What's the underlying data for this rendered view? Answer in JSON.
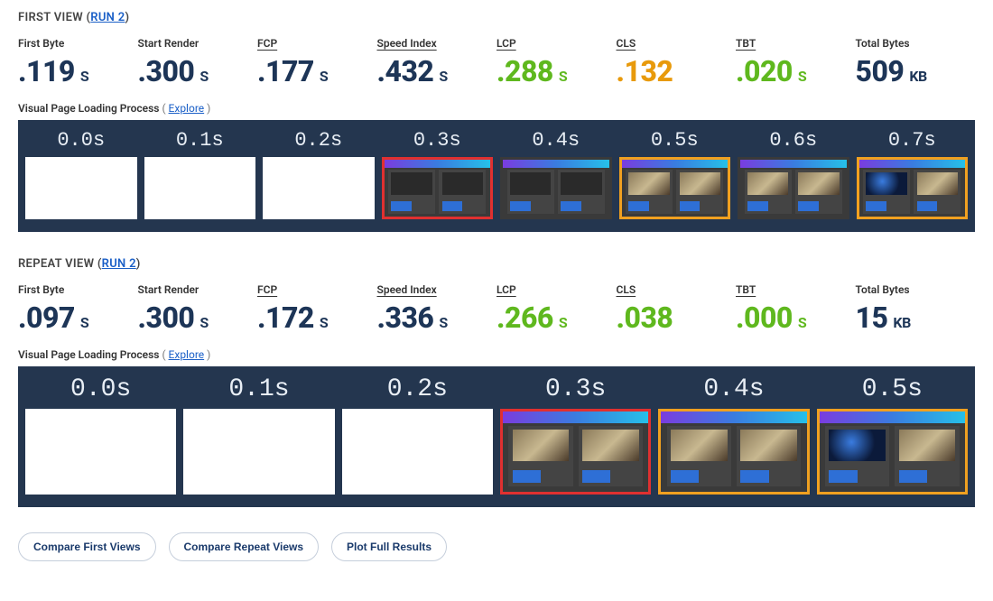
{
  "colors": {
    "navy": "#1d3557",
    "green": "#5fb81e",
    "orange": "#e89a0c",
    "link": "#1a5fc7",
    "filmstrip_bg": "#24364f",
    "hl_red": "#e03030",
    "hl_orange": "#f0a020"
  },
  "sections": [
    {
      "id": "first",
      "title_prefix": "FIRST VIEW ",
      "run_label": "RUN 2",
      "metrics": [
        {
          "label": "First Byte",
          "value": ".119",
          "unit": "S",
          "color": "navy",
          "underline": false
        },
        {
          "label": "Start Render",
          "value": ".300",
          "unit": "S",
          "color": "navy",
          "underline": false
        },
        {
          "label": "FCP",
          "value": ".177",
          "unit": "S",
          "color": "navy",
          "underline": true
        },
        {
          "label": "Speed Index",
          "value": ".432",
          "unit": "S",
          "color": "navy",
          "underline": true
        },
        {
          "label": "LCP",
          "value": ".288",
          "unit": "S",
          "color": "green",
          "underline": true
        },
        {
          "label": "CLS",
          "value": ".132",
          "unit": "",
          "color": "orange",
          "underline": true
        },
        {
          "label": "TBT",
          "value": ".020",
          "unit": "S",
          "color": "green",
          "underline": true
        },
        {
          "label": "Total Bytes",
          "value": "509",
          "unit": "KB",
          "color": "navy",
          "underline": false
        }
      ],
      "loading_label": "Visual Page Loading Process",
      "explore_label": "Explore",
      "filmstrip": {
        "frame_time_fontsize": 22,
        "frames": [
          {
            "t": "0.0s",
            "style": "blank",
            "highlight": null
          },
          {
            "t": "0.1s",
            "style": "blank",
            "highlight": null
          },
          {
            "t": "0.2s",
            "style": "blank",
            "highlight": null
          },
          {
            "t": "0.3s",
            "style": "dark",
            "highlight": "red"
          },
          {
            "t": "0.4s",
            "style": "dark",
            "highlight": null
          },
          {
            "t": "0.5s",
            "style": "photo1",
            "highlight": "orange"
          },
          {
            "t": "0.6s",
            "style": "photo1",
            "highlight": null
          },
          {
            "t": "0.7s",
            "style": "photo2",
            "highlight": "orange"
          }
        ]
      }
    },
    {
      "id": "repeat",
      "title_prefix": "REPEAT VIEW ",
      "run_label": "RUN 2",
      "metrics": [
        {
          "label": "First Byte",
          "value": ".097",
          "unit": "S",
          "color": "navy",
          "underline": false
        },
        {
          "label": "Start Render",
          "value": ".300",
          "unit": "S",
          "color": "navy",
          "underline": false
        },
        {
          "label": "FCP",
          "value": ".172",
          "unit": "S",
          "color": "navy",
          "underline": true
        },
        {
          "label": "Speed Index",
          "value": ".336",
          "unit": "S",
          "color": "navy",
          "underline": true
        },
        {
          "label": "LCP",
          "value": ".266",
          "unit": "S",
          "color": "green",
          "underline": true
        },
        {
          "label": "CLS",
          "value": ".038",
          "unit": "",
          "color": "green",
          "underline": true
        },
        {
          "label": "TBT",
          "value": ".000",
          "unit": "S",
          "color": "green",
          "underline": true
        },
        {
          "label": "Total Bytes",
          "value": "15",
          "unit": "KB",
          "color": "navy",
          "underline": false
        }
      ],
      "loading_label": "Visual Page Loading Process",
      "explore_label": "Explore",
      "filmstrip": {
        "frame_time_fontsize": 28,
        "frames": [
          {
            "t": "0.0s",
            "style": "blank",
            "highlight": null
          },
          {
            "t": "0.1s",
            "style": "blank",
            "highlight": null
          },
          {
            "t": "0.2s",
            "style": "blank",
            "highlight": null
          },
          {
            "t": "0.3s",
            "style": "photo1",
            "highlight": "red"
          },
          {
            "t": "0.4s",
            "style": "photo1",
            "highlight": "orange"
          },
          {
            "t": "0.5s",
            "style": "photo2",
            "highlight": "orange"
          }
        ]
      }
    }
  ],
  "buttons": {
    "compare_first": "Compare First Views",
    "compare_repeat": "Compare Repeat Views",
    "plot_full": "Plot Full Results"
  }
}
